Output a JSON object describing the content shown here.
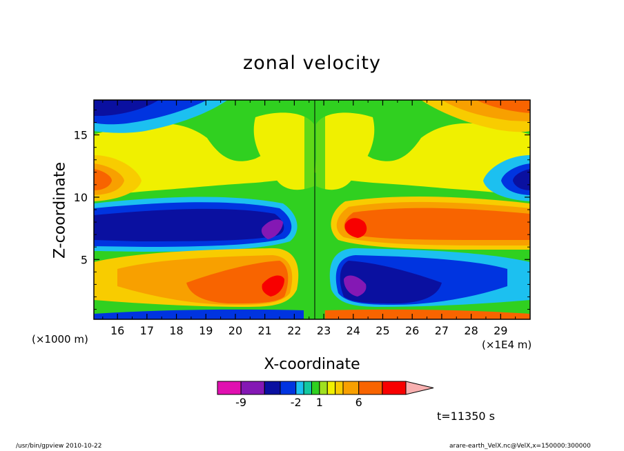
{
  "chart_data": {
    "type": "heatmap",
    "title": "zonal velocity",
    "xlabel": "X-coordinate",
    "ylabel": "Z-coordinate",
    "x_unit_left": "(×1000 m)",
    "x_unit_right": "(×1E4 m)",
    "xlim": [
      15.2,
      30
    ],
    "ylim": [
      0.2,
      17.8
    ],
    "x_ticks": [
      "16",
      "17",
      "18",
      "19",
      "20",
      "21",
      "22",
      "23",
      "24",
      "25",
      "26",
      "27",
      "28",
      "29"
    ],
    "x_tick_values": [
      16,
      17,
      18,
      19,
      20,
      21,
      22,
      23,
      24,
      25,
      26,
      27,
      28,
      29
    ],
    "y_ticks": [
      "5",
      "10",
      "15"
    ],
    "y_tick_values": [
      5,
      10,
      15
    ],
    "colorbar": {
      "labels": [
        "-9",
        "-2",
        "1",
        "6"
      ],
      "levels": [
        -12,
        -9,
        -6,
        -4,
        -2,
        -1,
        0,
        1,
        2,
        3,
        4,
        6,
        9,
        12
      ],
      "colors": [
        "#e010b0",
        "#8418b4",
        "#0a10a0",
        "#0034e0",
        "#1cc0f0",
        "#12c8a0",
        "#30d020",
        "#a0e020",
        "#f0f000",
        "#f8cc00",
        "#f8a000",
        "#f86400",
        "#f80000",
        "#f87070",
        "#f8b0b0"
      ]
    },
    "time_label": "t=11350 s"
  },
  "footer": {
    "left": "/usr/bin/gpview   2010-10-22",
    "right": "arare-earth_VelX.nc@VelX,x=150000:300000"
  }
}
